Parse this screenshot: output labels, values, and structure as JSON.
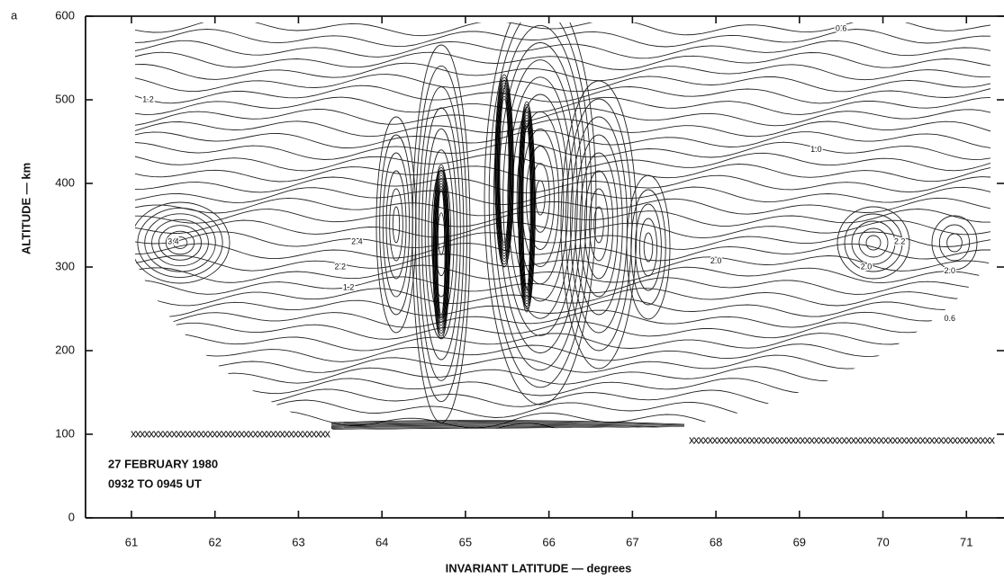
{
  "chart_data": {
    "type": "contour",
    "panel_label": "a",
    "x_label": "INVARIANT LATITUDE — degrees",
    "y_label": "ALTITUDE — km",
    "annotations": [
      "27 FEBRUARY 1980",
      "0932 TO 0945 UT"
    ],
    "xlim": [
      60.45,
      71.45
    ],
    "ylim": [
      0,
      600
    ],
    "xticks": [
      61,
      62,
      63,
      64,
      65,
      66,
      67,
      68,
      69,
      70,
      71
    ],
    "yticks": [
      0,
      100,
      200,
      300,
      400,
      500,
      600
    ],
    "contour_labels": [
      {
        "label": "2.0",
        "x": 68.0,
        "y": 307
      },
      {
        "label": "2.0",
        "x": 69.8,
        "y": 300
      },
      {
        "label": "2.2",
        "x": 70.2,
        "y": 330
      },
      {
        "label": "2.0",
        "x": 70.8,
        "y": 295
      },
      {
        "label": "2.2",
        "x": 63.5,
        "y": 300
      },
      {
        "label": "2.4",
        "x": 63.7,
        "y": 330
      },
      {
        "label": "3.4",
        "x": 61.5,
        "y": 330
      },
      {
        "label": "1.2",
        "x": 61.2,
        "y": 500
      },
      {
        "label": "1.0",
        "x": 69.2,
        "y": 440
      },
      {
        "label": "0.6",
        "x": 69.5,
        "y": 585
      },
      {
        "label": "1.2",
        "x": 63.6,
        "y": 275
      },
      {
        "label": "0.6",
        "x": 70.8,
        "y": 238
      }
    ]
  }
}
